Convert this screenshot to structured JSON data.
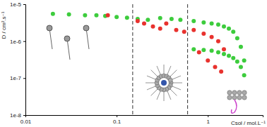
{
  "chart_data": {
    "type": "scatter",
    "x_label": "Csol / mol.L⁻¹",
    "y_label": "D / cm².s⁻¹",
    "log": true,
    "xlim": [
      0.01,
      4
    ],
    "xticks": [
      0.01,
      0.1,
      1
    ],
    "ylim": [
      1e-08,
      1e-05
    ],
    "yticks": [
      {
        "value": 1e-08,
        "label": "1e-8"
      },
      {
        "value": 1e-07,
        "label": "1e-7"
      },
      {
        "value": 1e-06,
        "label": "1e-6"
      },
      {
        "value": 1e-05,
        "label": "1e-5"
      }
    ],
    "vlines": [
      0.15,
      0.6
    ],
    "series": [
      {
        "color": "#3dcc3d",
        "marker": "circle",
        "x": [
          0.02,
          0.03,
          0.045,
          0.06,
          0.075,
          0.1,
          0.13,
          0.17,
          0.22,
          0.3,
          0.4,
          0.5,
          0.7,
          0.9,
          1.1,
          1.3,
          1.5,
          1.7,
          1.9,
          2.1,
          2.3,
          2.5,
          0.7,
          0.9,
          1.1,
          1.3,
          1.5,
          1.7,
          1.9,
          2.1,
          2.3,
          2.5
        ],
        "values": [
          5.5e-06,
          5.3e-06,
          5e-06,
          5e-06,
          4.8e-06,
          4.5e-06,
          4.3e-06,
          4e-06,
          3.8e-06,
          4.2e-06,
          4e-06,
          3.8e-06,
          3.5e-06,
          3.2e-06,
          3e-06,
          2.8e-06,
          2.5e-06,
          2.2e-06,
          1.8e-06,
          1.2e-06,
          7e-07,
          3e-07,
          6e-07,
          5.8e-07,
          5.5e-07,
          5e-07,
          4.5e-07,
          4e-07,
          3.5e-07,
          2.8e-07,
          2e-07,
          1.2e-07
        ]
      },
      {
        "color": "#e8322e",
        "marker": "circle",
        "x": [
          0.08,
          0.17,
          0.2,
          0.25,
          0.3,
          0.35,
          0.45,
          0.55,
          0.7,
          0.9,
          1.1,
          1.3,
          1.5,
          0.8,
          1.0,
          1.2,
          1.4
        ],
        "values": [
          5e-06,
          3.5e-06,
          3e-06,
          2.5e-06,
          2.2e-06,
          3e-06,
          2e-06,
          1.8e-06,
          2e-06,
          1.6e-06,
          1.3e-06,
          1e-06,
          6e-07,
          5e-07,
          3e-07,
          2e-07,
          1.5e-07
        ]
      }
    ]
  }
}
